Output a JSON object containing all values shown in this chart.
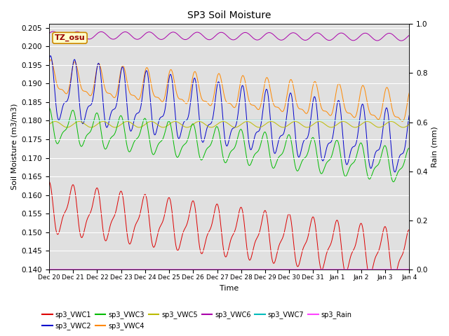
{
  "title": "SP3 Soil Moisture",
  "xlabel": "Time",
  "ylabel_left": "Soil Moisture (m3/m3)",
  "ylabel_right": "Rain (mm)",
  "annotation": "TZ_osu",
  "ylim_left": [
    0.14,
    0.206
  ],
  "ylim_right": [
    0.0,
    1.0
  ],
  "x_tick_labels": [
    "Dec 20",
    "Dec 21",
    "Dec 22",
    "Dec 23",
    "Dec 24",
    "Dec 25",
    "Dec 26",
    "Dec 27",
    "Dec 28",
    "Dec 29",
    "Dec 30",
    "Dec 31",
    "Jan 1",
    "Jan 2",
    "Jan 3",
    "Jan 4"
  ],
  "background_color": "#e0e0e0",
  "grid_color": "#ffffff",
  "series_colors": {
    "sp3_VWC1": "#dd0000",
    "sp3_VWC2": "#0000cc",
    "sp3_VWC3": "#00bb00",
    "sp3_VWC4": "#ff8800",
    "sp3_VWC5": "#bbbb00",
    "sp3_VWC6": "#aa00aa",
    "sp3_VWC7": "#00bbbb",
    "sp3_Rain": "#ff44ff"
  },
  "n_points": 1440,
  "n_days": 15
}
